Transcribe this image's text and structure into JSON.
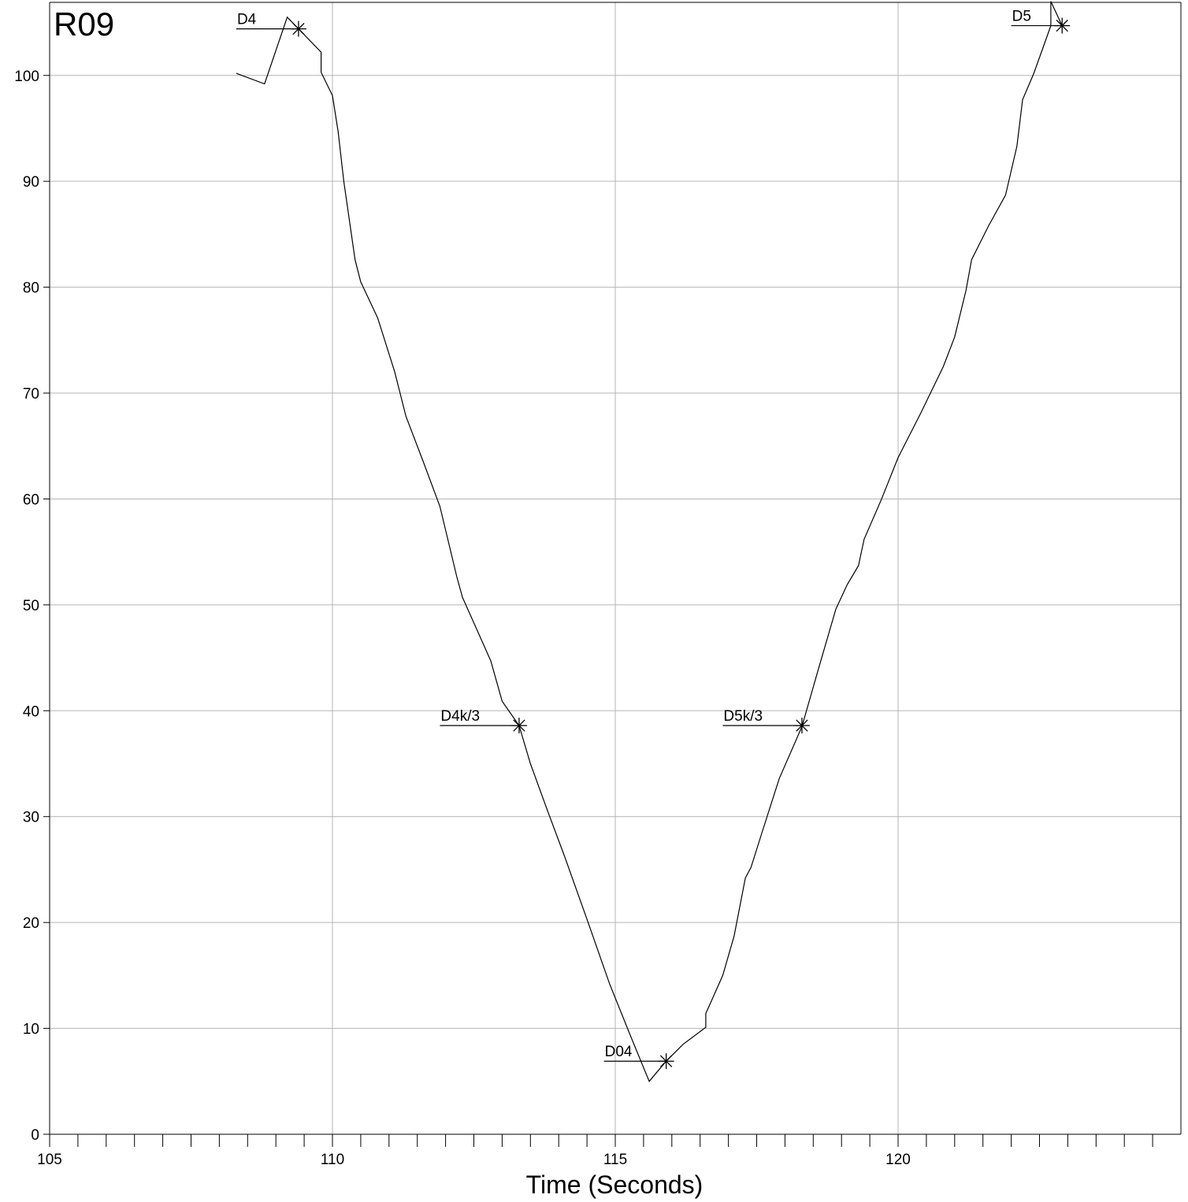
{
  "chart_data": {
    "type": "line",
    "title": "R09",
    "xlabel": "Time (Seconds)",
    "ylabel": "",
    "xlim": [
      105,
      125
    ],
    "ylim": [
      0,
      108
    ],
    "xticks": [
      105,
      110,
      115,
      120
    ],
    "yticks": [
      0,
      10,
      20,
      30,
      40,
      50,
      60,
      70,
      80,
      90,
      100
    ],
    "xminor_step": 0.5,
    "grid": true,
    "series": [
      {
        "name": "",
        "color": "#000000",
        "x": [
          108.3,
          108.8,
          109.2,
          109.4,
          109.8,
          109.8,
          110.0,
          110.1,
          110.2,
          110.4,
          110.5,
          110.8,
          111.1,
          111.3,
          111.6,
          111.9,
          112.2,
          112.3,
          112.5,
          112.8,
          113.0,
          113.3,
          113.5,
          113.8,
          114.1,
          114.5,
          114.9,
          115.3,
          115.6,
          115.9,
          116.2,
          116.6,
          116.6,
          116.7,
          116.9,
          117.1,
          117.3,
          117.4,
          117.6,
          117.9,
          118.3,
          118.6,
          118.9,
          119.1,
          119.3,
          119.4,
          119.7,
          120.0,
          120.4,
          120.8,
          121.0,
          121.2,
          121.3,
          121.6,
          121.9,
          122.1,
          122.2,
          122.4,
          122.7,
          122.7,
          122.9
        ],
        "y": [
          100.2,
          99.2,
          105.5,
          104.4,
          102.2,
          100.3,
          98.1,
          94.7,
          90.0,
          82.6,
          80.5,
          77.1,
          72.0,
          67.8,
          63.6,
          59.3,
          52.6,
          50.7,
          48.3,
          44.7,
          40.9,
          38.6,
          35.0,
          30.6,
          26.3,
          20.3,
          14.2,
          8.9,
          5.0,
          6.9,
          8.5,
          10.1,
          11.4,
          12.6,
          15.0,
          18.7,
          24.2,
          25.2,
          28.6,
          33.6,
          38.5,
          44.1,
          49.6,
          51.9,
          53.7,
          56.2,
          59.9,
          63.9,
          68.1,
          72.5,
          75.3,
          79.7,
          82.6,
          85.8,
          88.7,
          93.3,
          97.7,
          100.2,
          104.7,
          107.0,
          104.7
        ]
      }
    ],
    "annotations": [
      {
        "label": "D4",
        "x": 109.4,
        "y": 104.4,
        "line_from_x": 108.3
      },
      {
        "label": "D4k/3",
        "x": 113.3,
        "y": 38.6,
        "line_from_x": 111.9
      },
      {
        "label": "D04",
        "x": 115.9,
        "y": 6.9,
        "line_from_x": 114.8
      },
      {
        "label": "D5k/3",
        "x": 118.3,
        "y": 38.6,
        "line_from_x": 116.9
      },
      {
        "label": "D5",
        "x": 122.9,
        "y": 104.7,
        "line_from_x": 122.0
      }
    ]
  }
}
